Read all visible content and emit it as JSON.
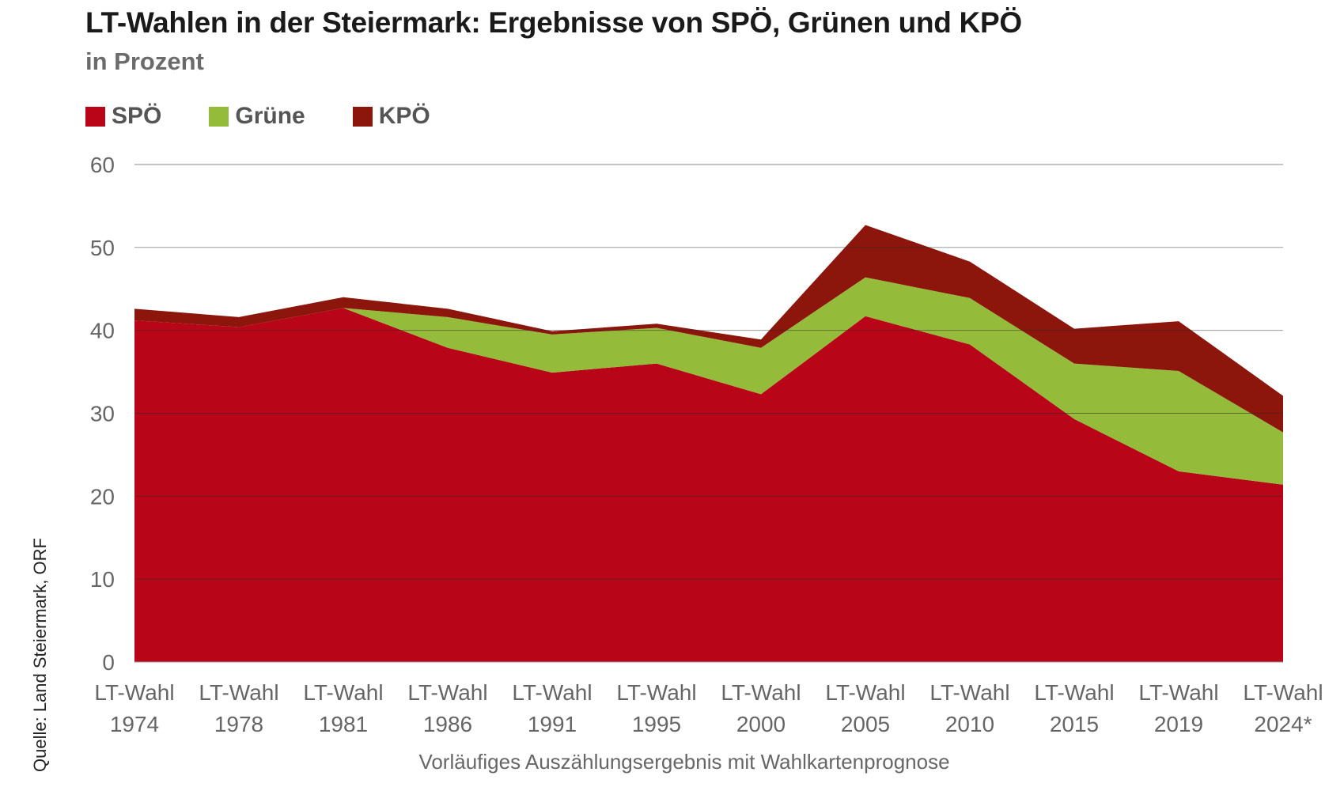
{
  "header": {
    "title": "LT-Wahlen in der Steiermark: Ergebnisse von SPÖ, Grünen und KPÖ",
    "subtitle": "in Prozent"
  },
  "footer": {
    "source": "Quelle: Land Steiermark, ORF",
    "note": "Vorläufiges Auszählungsergebnis mit Wahlkartenprognose"
  },
  "chart_data": {
    "type": "area",
    "stacked": true,
    "categories": [
      [
        "LT-Wahl",
        "1974"
      ],
      [
        "LT-Wahl",
        "1978"
      ],
      [
        "LT-Wahl",
        "1981"
      ],
      [
        "LT-Wahl",
        "1986"
      ],
      [
        "LT-Wahl",
        "1991"
      ],
      [
        "LT-Wahl",
        "1995"
      ],
      [
        "LT-Wahl",
        "2000"
      ],
      [
        "LT-Wahl",
        "2005"
      ],
      [
        "LT-Wahl",
        "2010"
      ],
      [
        "LT-Wahl",
        "2015"
      ],
      [
        "LT-Wahl",
        "2019"
      ],
      [
        "LT-Wahl",
        "2024*"
      ]
    ],
    "series": [
      {
        "name": "SPÖ",
        "color": "#b80618",
        "values": [
          41.2,
          40.4,
          42.7,
          37.9,
          34.9,
          36.0,
          32.3,
          41.7,
          38.3,
          29.3,
          23.0,
          21.4
        ]
      },
      {
        "name": "Grüne",
        "color": "#94bb3a",
        "values": [
          0.0,
          0.0,
          0.0,
          3.7,
          4.6,
          4.3,
          5.6,
          4.7,
          5.6,
          6.7,
          12.1,
          6.3
        ]
      },
      {
        "name": "KPÖ",
        "color": "#8c150c",
        "values": [
          1.4,
          1.2,
          1.3,
          1.0,
          0.4,
          0.5,
          1.0,
          6.3,
          4.4,
          4.2,
          6.0,
          4.4
        ]
      }
    ],
    "ylim": [
      0,
      60
    ],
    "yticks": [
      0,
      10,
      20,
      30,
      40,
      50,
      60
    ],
    "grid": true,
    "legend": "top-left"
  }
}
